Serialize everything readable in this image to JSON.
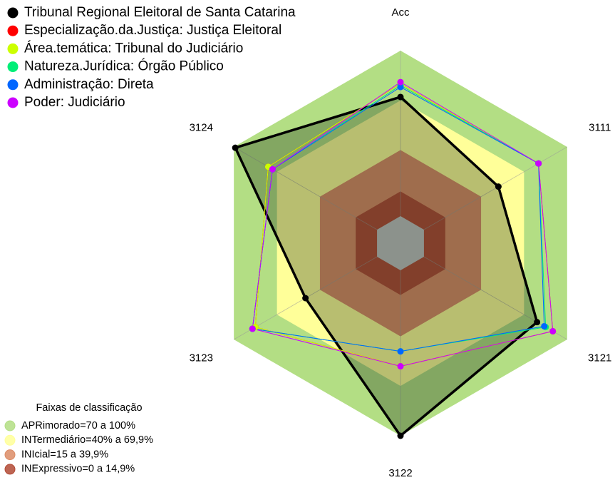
{
  "chart_data": {
    "type": "radar",
    "axes": [
      "Acc",
      "3111",
      "3121",
      "3122",
      "3123",
      "3124"
    ],
    "rlim": [
      0,
      100
    ],
    "series": [
      {
        "name": "Tribunal Regional Eleitoral de Santa Catarina",
        "color": "#000000",
        "values": [
          72,
          52,
          79,
          100,
          50,
          99
        ]
      },
      {
        "name": "Especialização.da.Justiça: Justiça Eleitoral",
        "color": "#ff0000",
        "values": [
          80,
          80,
          90,
          58,
          85,
          76
        ]
      },
      {
        "name": "Área.temática: Tribunal do Judiciário",
        "color": "#ccff00",
        "values": [
          80,
          80,
          90,
          58,
          85,
          76
        ]
      },
      {
        "name": "Natureza.Jurídica: Órgão Público",
        "color": "#00ee77",
        "values": [
          79,
          80,
          85,
          49,
          87,
          73
        ]
      },
      {
        "name": "Administração: Direta",
        "color": "#0066ff",
        "values": [
          78,
          80,
          84,
          49,
          87,
          73
        ]
      },
      {
        "name": "Poder: Judiciário",
        "color": "#cc00ff",
        "values": [
          81,
          80,
          90,
          58,
          87,
          73
        ]
      }
    ],
    "bands": {
      "title": "Faixas de classificação",
      "items": [
        {
          "label": "APRimorado=70 a 100%",
          "range": [
            70,
            100
          ],
          "color": "#b3de84"
        },
        {
          "label": "INTermediário=40% a 69,9%",
          "range": [
            40,
            69.9
          ],
          "color": "#ffff99"
        },
        {
          "label": "INIcial=15 a 39,9%",
          "range": [
            15,
            39.9
          ],
          "color": "#dc8c66"
        },
        {
          "label": "INExpressivo=0 a 14,9%",
          "range": [
            0,
            14.9
          ],
          "color": "#b24a35"
        }
      ]
    }
  }
}
